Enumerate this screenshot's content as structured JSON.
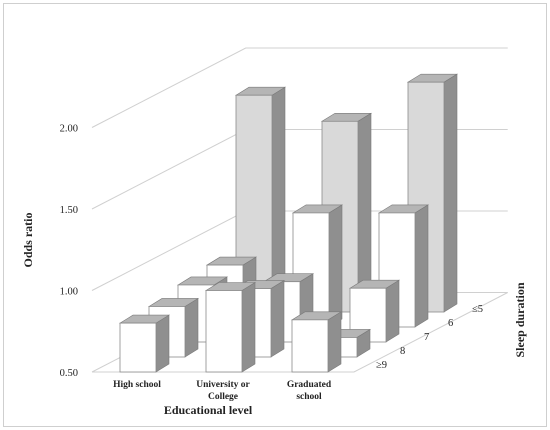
{
  "chart_data": {
    "type": "bar",
    "variant": "3d-grouped",
    "xlabel": "Educational level",
    "ylabel": "Odds ratio",
    "zlabel": "Sleep duration",
    "categories": [
      {
        "line1": "High school",
        "line2": ""
      },
      {
        "line1": "University or",
        "line2": "College"
      },
      {
        "line1": "Graduated",
        "line2": "school"
      }
    ],
    "depth_labels": [
      "≥9",
      "8",
      "7",
      "6",
      "≤5"
    ],
    "yticks": [
      "0.50",
      "1.00",
      "1.50",
      "2.00"
    ],
    "ylim": [
      0.5,
      2.5
    ],
    "grid": true,
    "colors": {
      "front": "#ffffff",
      "top": "#b5b5b5",
      "side": "#8f8f8f",
      "back_front": "#d9d9d9"
    },
    "series": [
      {
        "name": "≥9",
        "values": [
          0.8,
          1.0,
          0.82
        ]
      },
      {
        "name": "8",
        "values": [
          0.81,
          0.92,
          0.62
        ]
      },
      {
        "name": "7",
        "values": [
          0.85,
          0.87,
          0.83
        ]
      },
      {
        "name": "6",
        "values": [
          0.88,
          1.2,
          1.2
        ]
      },
      {
        "name": "≤5",
        "values": [
          1.83,
          1.67,
          1.91
        ]
      }
    ]
  }
}
